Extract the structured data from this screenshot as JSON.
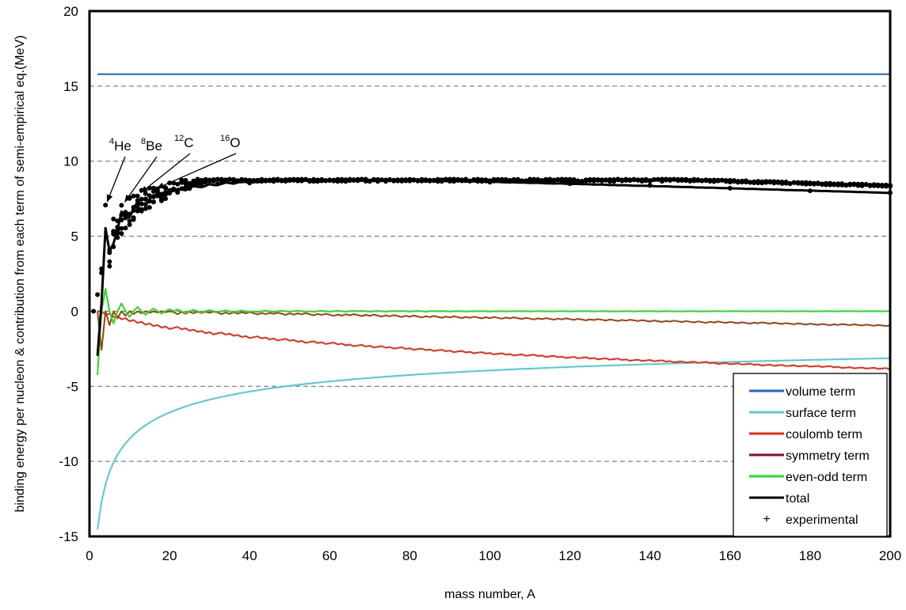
{
  "chart_data": {
    "type": "line",
    "title": "",
    "xlabel": "mass number, A",
    "ylabel": "binding energy per nucleon & contribution from each term of semi-empirical eq.(MeV)",
    "xlim": [
      0,
      200
    ],
    "ylim": [
      -15,
      20
    ],
    "x_ticks": [
      "0",
      "20",
      "40",
      "60",
      "80",
      "100",
      "120",
      "140",
      "160",
      "180",
      "200"
    ],
    "y_ticks": [
      "20",
      "15",
      "10",
      "5",
      "0",
      "-5",
      "-10",
      "-15"
    ],
    "grid": "horizontal dashed",
    "legend_position": "bottom-right",
    "legend": [
      {
        "label": "volume term",
        "color": "#1f66c7",
        "kind": "line"
      },
      {
        "label": "surface term",
        "color": "#5fc8dc",
        "kind": "line"
      },
      {
        "label": "coulomb term",
        "color": "#ee2a15",
        "kind": "line"
      },
      {
        "label": "symmetry term",
        "color": "#8b0a3c",
        "kind": "line"
      },
      {
        "label": "even-odd term",
        "color": "#22dd22",
        "kind": "line"
      },
      {
        "label": "total",
        "color": "#000000",
        "kind": "line"
      },
      {
        "label": "experimental",
        "color": "#000000",
        "kind": "marker"
      }
    ],
    "legend_marker_symbol": "+",
    "series": [
      {
        "name": "volume term",
        "formula": "15.8",
        "color": "#1f66c7"
      },
      {
        "name": "surface term",
        "formula": "-18.3 * A^(-1/3)",
        "color": "#4ecdd0"
      },
      {
        "name": "coulomb term",
        "formula": "-0.714 * Z(Z-1) / A^(4/3)",
        "color": "#ee2a15"
      },
      {
        "name": "symmetry term",
        "formula": "-23.2 * (A-2Z)^2 / A^2",
        "color": "#a04010"
      },
      {
        "name": "even-odd term",
        "formula": "±12 / A^(3/2)",
        "color": "#22dd22"
      },
      {
        "name": "total",
        "formula": "sum of terms",
        "color": "#000000"
      }
    ],
    "experimental_sample": [
      [
        1,
        0.0
      ],
      [
        2,
        1.11
      ],
      [
        3,
        2.57
      ],
      [
        3,
        2.83
      ],
      [
        4,
        7.07
      ],
      [
        6,
        5.33
      ],
      [
        7,
        5.61
      ],
      [
        7,
        5.37
      ],
      [
        8,
        7.06
      ],
      [
        9,
        6.46
      ],
      [
        10,
        6.48
      ],
      [
        11,
        6.93
      ],
      [
        12,
        7.68
      ],
      [
        13,
        7.47
      ],
      [
        14,
        7.48
      ],
      [
        15,
        7.7
      ],
      [
        16,
        7.98
      ],
      [
        17,
        7.75
      ],
      [
        18,
        7.77
      ],
      [
        19,
        7.78
      ],
      [
        20,
        8.03
      ],
      [
        24,
        8.26
      ],
      [
        28,
        8.45
      ],
      [
        32,
        8.49
      ],
      [
        40,
        8.55
      ],
      [
        56,
        8.79
      ],
      [
        62,
        8.79
      ],
      [
        80,
        8.7
      ],
      [
        100,
        8.6
      ],
      [
        120,
        8.5
      ],
      [
        140,
        8.38
      ],
      [
        160,
        8.2
      ],
      [
        180,
        8.03
      ],
      [
        200,
        7.9
      ]
    ],
    "annotations": [
      {
        "sup": "4",
        "base": "He",
        "x": 4,
        "y": 7.07
      },
      {
        "sup": "8",
        "base": "Be",
        "x": 8,
        "y": 7.06
      },
      {
        "sup": "12",
        "base": "C",
        "x": 12,
        "y": 7.68
      },
      {
        "sup": "16",
        "base": "O",
        "x": 16,
        "y": 7.98
      }
    ]
  }
}
